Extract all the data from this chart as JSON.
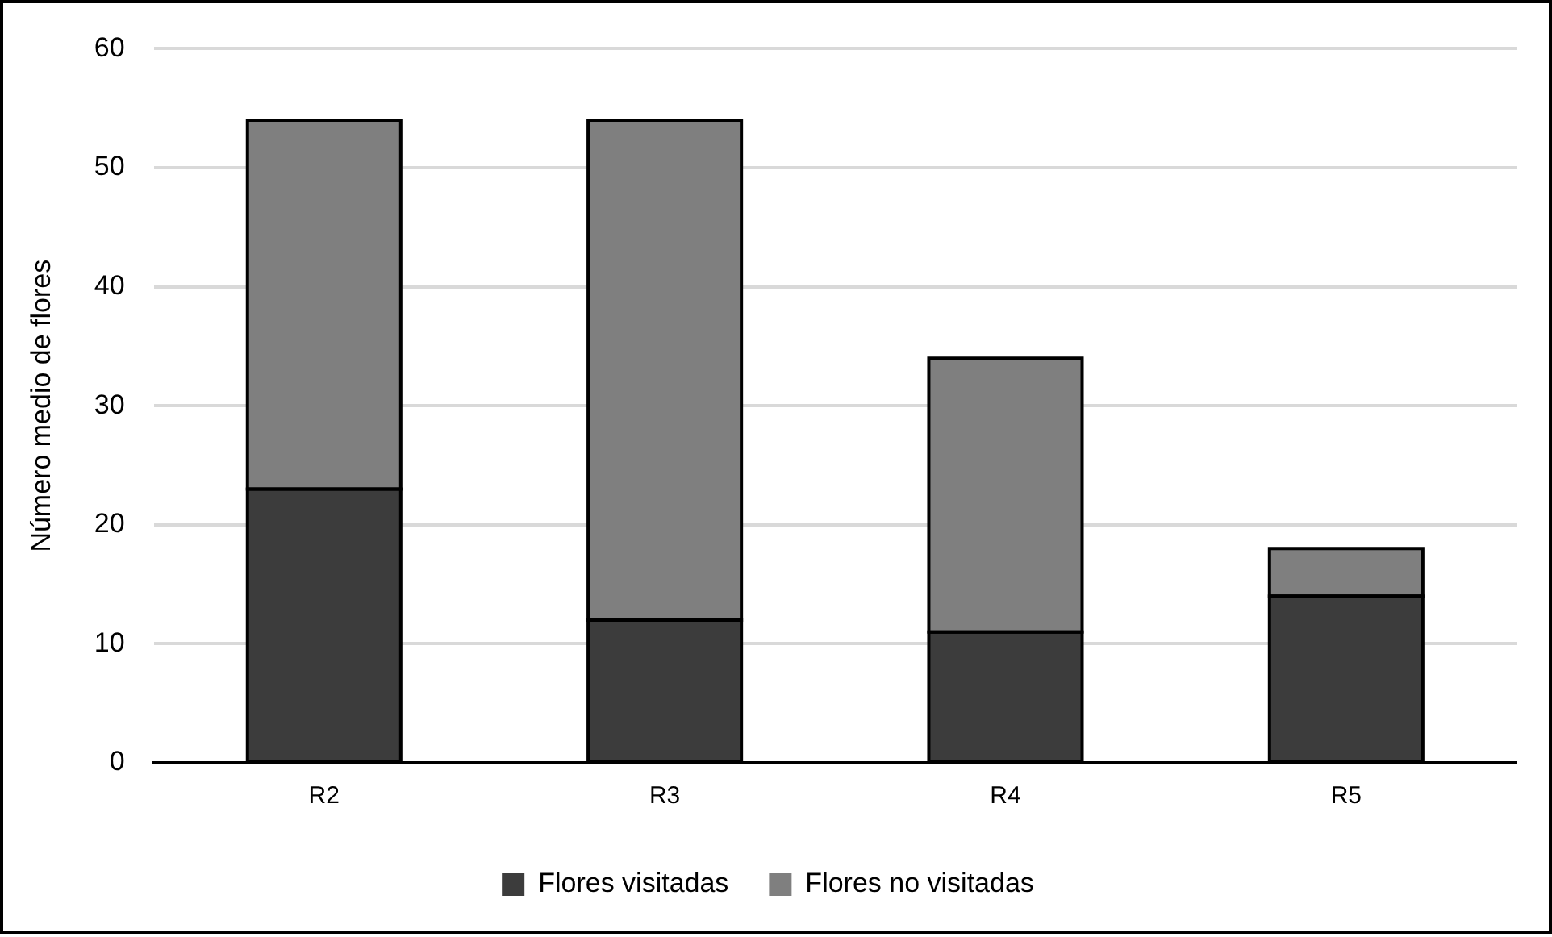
{
  "chart_data": {
    "type": "bar",
    "stacked": true,
    "ylabel": "Número medio de flores",
    "categories": [
      "R2",
      "R3",
      "R4",
      "R5"
    ],
    "series": [
      {
        "name": "Flores visitadas",
        "color": "#3c3c3c",
        "values": [
          23,
          12,
          11,
          14
        ]
      },
      {
        "name": "Flores no visitadas",
        "color": "#7f7f7f",
        "values": [
          31,
          42,
          23,
          4
        ]
      }
    ],
    "ylim": [
      0,
      60
    ],
    "yticks": [
      0,
      10,
      20,
      30,
      40,
      50,
      60
    ],
    "grid": "y",
    "legend": "bottom"
  }
}
